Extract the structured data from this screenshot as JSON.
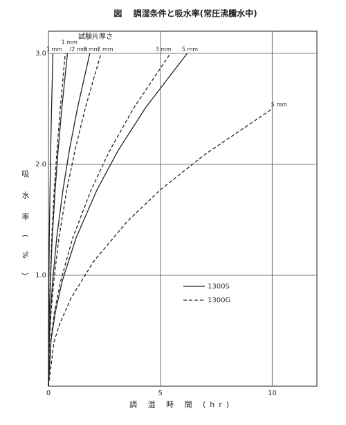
{
  "chart_data": {
    "type": "line",
    "title": "図　 調湿条件と吸水率(常圧沸騰水中)",
    "xlabel": "調 湿 時 間 (hr)",
    "ylabel": "吸水率(%)",
    "annotation": "試験片厚さ",
    "xlim": [
      0,
      12
    ],
    "ylim": [
      0,
      3.2
    ],
    "xticks": [
      0,
      5,
      10
    ],
    "yticks": [
      {
        "value": 1,
        "label": "1.0"
      },
      {
        "value": 2,
        "label": "2.0"
      },
      {
        "value": 3,
        "label": "3.0"
      }
    ],
    "grid": true,
    "legend_position": "lower right",
    "legend": [
      {
        "name": "1300S",
        "dash": "none",
        "color": "#222"
      },
      {
        "name": "1300G",
        "dash": "5 3",
        "color": "#222"
      }
    ],
    "series": [
      {
        "name": "1 mm",
        "legend": 0,
        "x": [
          0,
          0.004,
          0.01,
          0.02,
          0.04,
          0.07,
          0.1,
          0.14,
          0.2
        ],
        "values": [
          0,
          0.42,
          0.67,
          0.95,
          1.34,
          1.77,
          2.12,
          2.51,
          3.0
        ]
      },
      {
        "name": "1 mm",
        "legend": 1,
        "x": [
          0,
          0.015,
          0.04,
          0.08,
          0.15,
          0.26,
          0.38,
          0.53,
          0.75
        ],
        "values": [
          0,
          0.42,
          0.67,
          0.95,
          1.34,
          1.77,
          2.12,
          2.51,
          3.0
        ]
      },
      {
        "name": "/2 mm",
        "legend": 0,
        "x": [
          0,
          0.017,
          0.04,
          0.09,
          0.17,
          0.3,
          0.43,
          0.6,
          0.85
        ],
        "values": [
          0,
          0.42,
          0.67,
          0.95,
          1.34,
          1.77,
          2.12,
          2.51,
          3.0
        ]
      },
      {
        "name": "3 mm",
        "legend": 0,
        "x": [
          0,
          0.04,
          0.09,
          0.19,
          0.37,
          0.65,
          0.93,
          1.3,
          1.85
        ],
        "values": [
          0,
          0.42,
          0.67,
          0.95,
          1.34,
          1.77,
          2.12,
          2.51,
          3.0
        ]
      },
      {
        "name": "2 mm",
        "legend": 1,
        "x": [
          0,
          0.05,
          0.12,
          0.24,
          0.47,
          0.82,
          1.18,
          1.65,
          2.35
        ],
        "values": [
          0,
          0.42,
          0.67,
          0.95,
          1.34,
          1.77,
          2.12,
          2.51,
          3.0
        ]
      },
      {
        "name": "3 mm",
        "legend": 1,
        "x": [
          0,
          0.11,
          0.27,
          0.55,
          1.09,
          1.91,
          2.73,
          3.82,
          5.45
        ],
        "values": [
          0,
          0.42,
          0.67,
          0.95,
          1.34,
          1.77,
          2.12,
          2.51,
          3.0
        ]
      },
      {
        "name": "5 mm",
        "legend": 0,
        "x": [
          0,
          0.12,
          0.31,
          0.62,
          1.24,
          2.17,
          3.1,
          4.34,
          6.2
        ],
        "values": [
          0,
          0.42,
          0.67,
          0.95,
          1.34,
          1.77,
          2.12,
          2.51,
          3.0
        ]
      },
      {
        "name": "5 mm",
        "legend": 1,
        "x": [
          0,
          0.25,
          0.5,
          1,
          2,
          3.5,
          5,
          7,
          10
        ],
        "values": [
          0,
          0.4,
          0.56,
          0.79,
          1.12,
          1.48,
          1.77,
          2.09,
          2.5
        ]
      }
    ]
  }
}
